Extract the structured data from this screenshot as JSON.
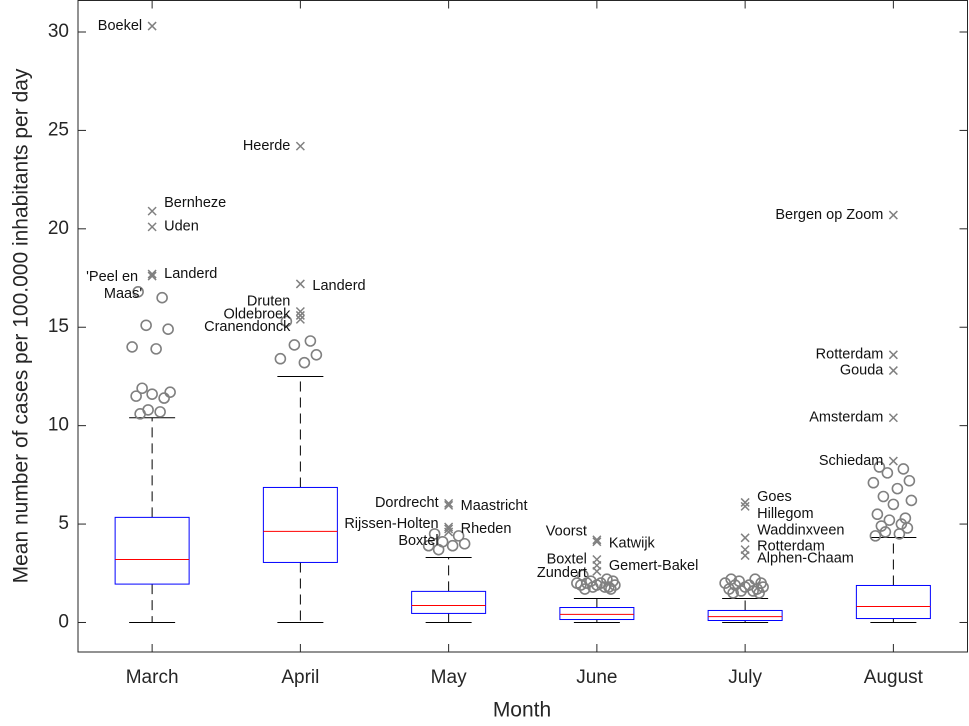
{
  "chart_data": {
    "type": "box",
    "xlabel": "Month",
    "ylabel": "Mean number of cases per 100.000 inhabitants per day",
    "categories": [
      "March",
      "April",
      "May",
      "June",
      "July",
      "August"
    ],
    "ylim": [
      -1.5,
      31.6
    ],
    "yticks": [
      0,
      5,
      10,
      15,
      20,
      25,
      30
    ],
    "box_color": "#0000ff",
    "median_color": "#ff0000",
    "whisker_color": "#000000",
    "outlier_color": "#808080",
    "boxes": [
      {
        "whisker_low": 0,
        "q1": 1.95,
        "median": 3.2,
        "q3": 5.34,
        "whisker_high": 10.4,
        "outliers": [
          16.8,
          16.5,
          15.1,
          14.9,
          14.0,
          13.9,
          11.9,
          11.7,
          11.6,
          11.5,
          11.4,
          10.8,
          10.7,
          10.6
        ],
        "labeled": [
          {
            "name": "Boekel",
            "value": 30.3
          },
          {
            "name": "Bernheze",
            "value": 20.9
          },
          {
            "name": "Uden",
            "value": 20.1
          },
          {
            "name": "Landerd",
            "value": 17.7
          },
          {
            "name": "'Peel en Maas'",
            "value": 17.6
          }
        ]
      },
      {
        "whisker_low": 0,
        "q1": 3.05,
        "median": 4.63,
        "q3": 6.86,
        "whisker_high": 12.5,
        "outliers": [
          15.3,
          14.3,
          14.1,
          13.6,
          13.4,
          13.2
        ],
        "labeled": [
          {
            "name": "Heerde",
            "value": 24.2
          },
          {
            "name": "Landerd",
            "value": 17.2
          },
          {
            "name": "Druten",
            "value": 15.8
          },
          {
            "name": "Oldebroek",
            "value": 15.6
          },
          {
            "name": "Cranendonck",
            "value": 15.4
          }
        ]
      },
      {
        "whisker_low": 0,
        "q1": 0.46,
        "median": 0.86,
        "q3": 1.58,
        "whisker_high": 3.3,
        "outliers": [
          4.5,
          4.4,
          4.1,
          4.0,
          3.9,
          3.9,
          3.7
        ],
        "labeled": [
          {
            "name": "Dordrecht",
            "value": 6.05
          },
          {
            "name": "Maastricht",
            "value": 5.95
          },
          {
            "name": "Rijssen-Holten",
            "value": 4.85
          },
          {
            "name": "Rheden",
            "value": 4.75
          },
          {
            "name": "Boxtel",
            "value": 4.6
          }
        ]
      },
      {
        "whisker_low": 0,
        "q1": 0.15,
        "median": 0.41,
        "q3": 0.76,
        "whisker_high": 1.22,
        "outliers": [
          2.4,
          2.2,
          2.1,
          2.1,
          2.0,
          2.0,
          2.0,
          1.9,
          1.9,
          1.9,
          1.8,
          1.8,
          1.8,
          1.7,
          1.7
        ],
        "labeled": [
          {
            "name": "Voorst",
            "value": 4.2
          },
          {
            "name": "Katwijk",
            "value": 4.1
          },
          {
            "name": "Boxtel",
            "value": 3.2
          },
          {
            "name": "Gemert-Bakel",
            "value": 2.9
          },
          {
            "name": "Zundert",
            "value": 2.6
          }
        ]
      },
      {
        "whisker_low": 0,
        "q1": 0.1,
        "median": 0.3,
        "q3": 0.61,
        "whisker_high": 1.22,
        "outliers": [
          2.2,
          2.2,
          2.1,
          2.0,
          2.0,
          1.9,
          1.9,
          1.8,
          1.8,
          1.7,
          1.7,
          1.6,
          1.6,
          1.5,
          1.5
        ],
        "labeled": [
          {
            "name": "Goes",
            "value": 6.1
          },
          {
            "name": "Hillegom",
            "value": 5.9
          },
          {
            "name": "Waddinxveen",
            "value": 4.3
          },
          {
            "name": "Rotterdam",
            "value": 3.7
          },
          {
            "name": "Alphen-Chaam",
            "value": 3.4
          }
        ]
      },
      {
        "whisker_low": 0,
        "q1": 0.2,
        "median": 0.81,
        "q3": 1.88,
        "whisker_high": 4.32,
        "outliers": [
          7.9,
          7.8,
          7.6,
          7.2,
          7.1,
          6.8,
          6.4,
          6.2,
          6.0,
          5.5,
          5.3,
          5.2,
          5.0,
          4.9,
          4.8,
          4.6,
          4.5,
          4.4
        ],
        "labeled": [
          {
            "name": "Bergen op Zoom",
            "value": 20.7
          },
          {
            "name": "Rotterdam",
            "value": 13.6
          },
          {
            "name": "Gouda",
            "value": 12.8
          },
          {
            "name": "Amsterdam",
            "value": 10.4
          },
          {
            "name": "Schiedam",
            "value": 8.2
          }
        ]
      }
    ]
  }
}
